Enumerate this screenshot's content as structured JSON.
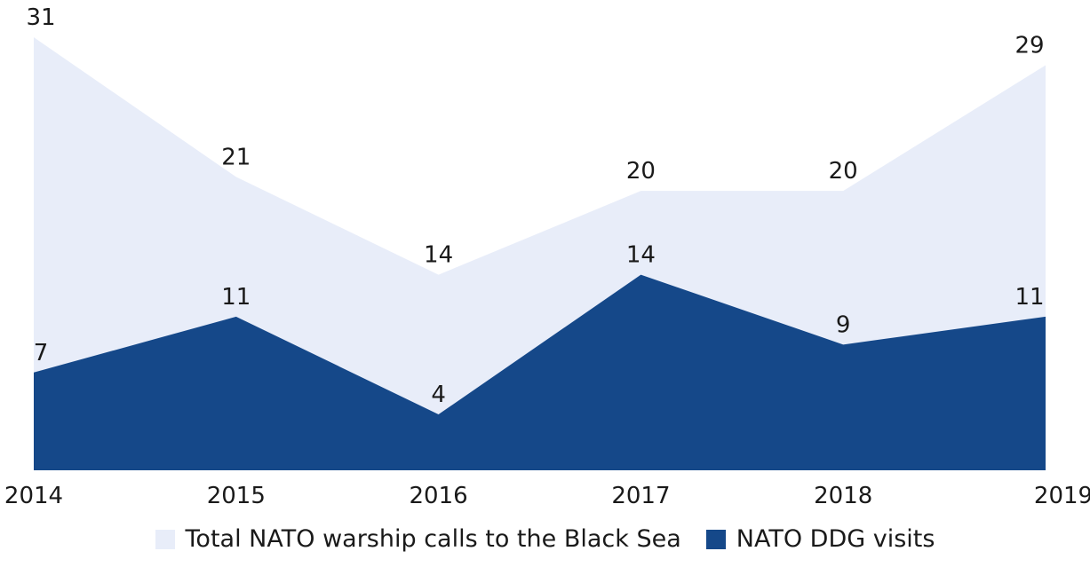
{
  "chart_data": {
    "type": "area",
    "categories": [
      "2014",
      "2015",
      "2016",
      "2017",
      "2018",
      "2019"
    ],
    "series": [
      {
        "name": "Total NATO warship calls to the Black Sea",
        "values": [
          31,
          21,
          14,
          20,
          20,
          29
        ],
        "color": "#e8edf9"
      },
      {
        "name": "NATO DDG visits",
        "values": [
          7,
          11,
          4,
          14,
          9,
          11
        ],
        "color": "#154889"
      }
    ],
    "ylim": [
      0,
      31
    ],
    "data_labels": true,
    "grid": false,
    "legend": "bottom-center"
  }
}
